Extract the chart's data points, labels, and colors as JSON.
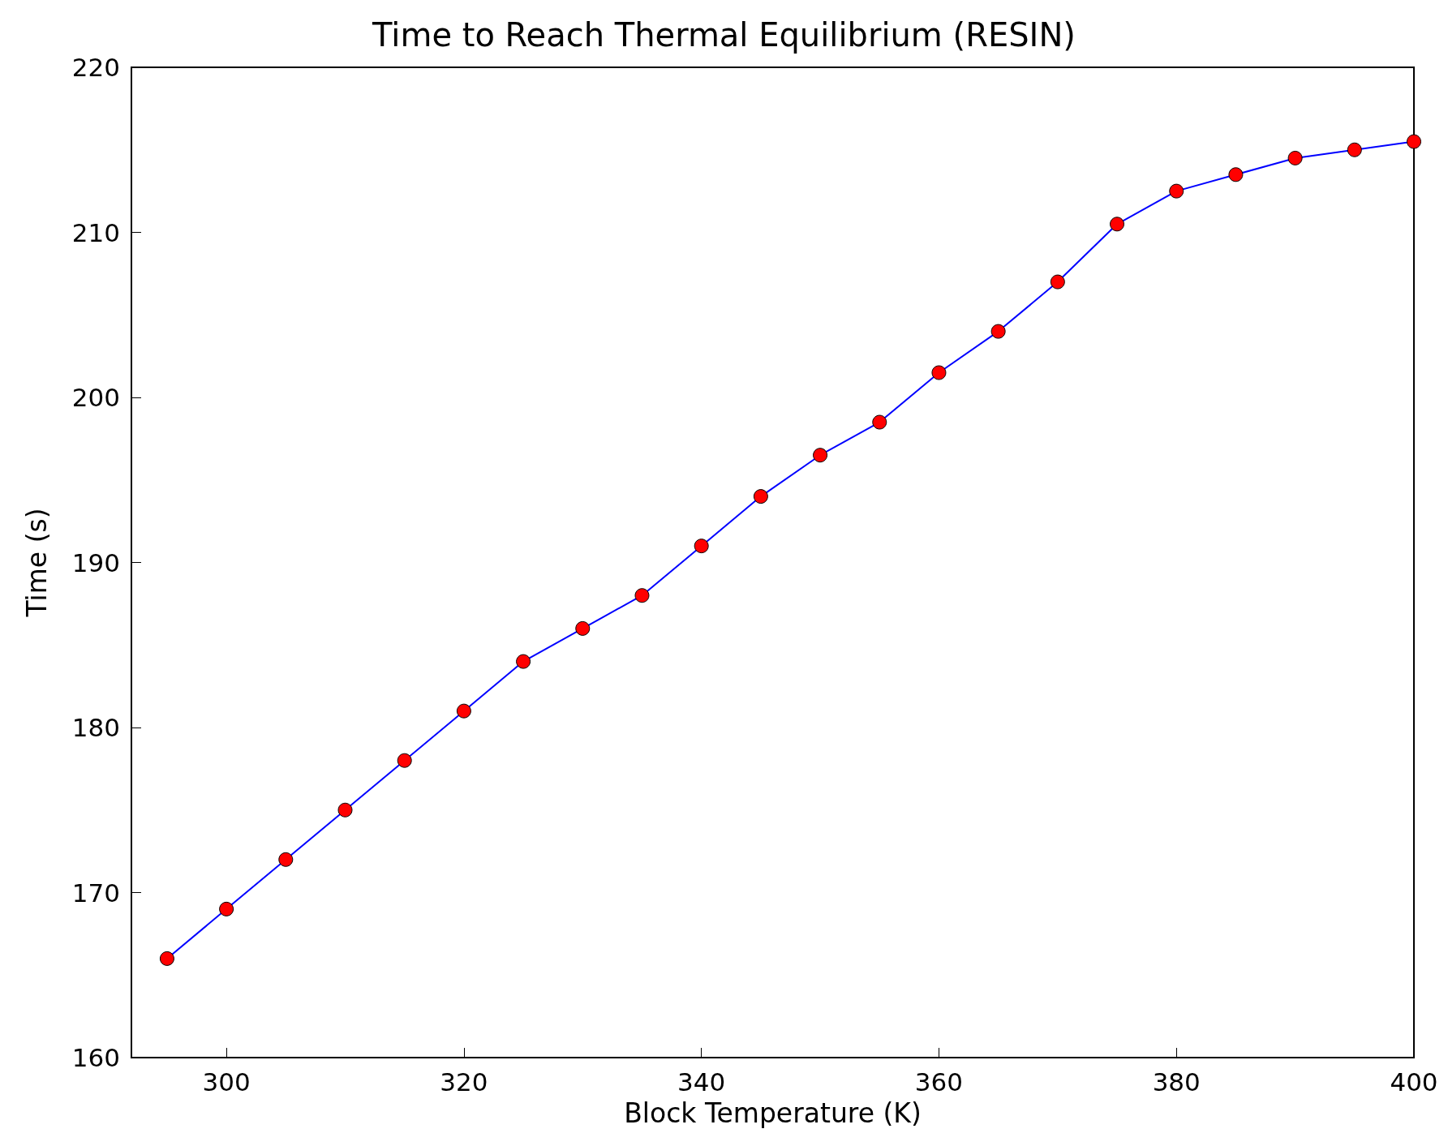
{
  "chart_data": {
    "type": "line",
    "title": "Time to Reach Thermal Equilibrium (RESIN)",
    "xlabel": "Block Temperature (K)",
    "ylabel": "Time (s)",
    "x": [
      295,
      300,
      305,
      310,
      315,
      320,
      325,
      330,
      335,
      340,
      345,
      350,
      355,
      360,
      365,
      370,
      375,
      380,
      385,
      390,
      395,
      400
    ],
    "series": [
      {
        "color": "#0000ff",
        "colors": [
          "#ff0000",
          "#ff0000",
          "#ff0000",
          "#ff0000",
          "#ff0000",
          "#ff0000",
          "#ff0000",
          "#ff0000",
          "#ff0000",
          "#ff0000",
          "#ff0000",
          "#ff0000",
          "#ff0000",
          "#ff0000",
          "#ff0000",
          "#ff0000",
          "#ff0000",
          "#ff0000",
          "#ff0000",
          "#ff0000",
          "#ff0000",
          "#ff0000"
        ],
        "values": [
          166,
          169,
          172,
          175,
          178,
          181,
          184,
          186,
          188,
          191,
          194,
          196.5,
          198.5,
          201.5,
          204,
          207,
          210.5,
          212.5,
          213.5,
          214.5,
          215,
          215.5
        ]
      }
    ],
    "xlim": [
      292,
      400
    ],
    "xticks": [
      300,
      320,
      340,
      360,
      380,
      400
    ],
    "ylim": [
      160,
      220
    ],
    "yticks": [
      160,
      170,
      180,
      190,
      200,
      210,
      220
    ],
    "marker": "circle",
    "line_style": "solid",
    "grid": false
  }
}
